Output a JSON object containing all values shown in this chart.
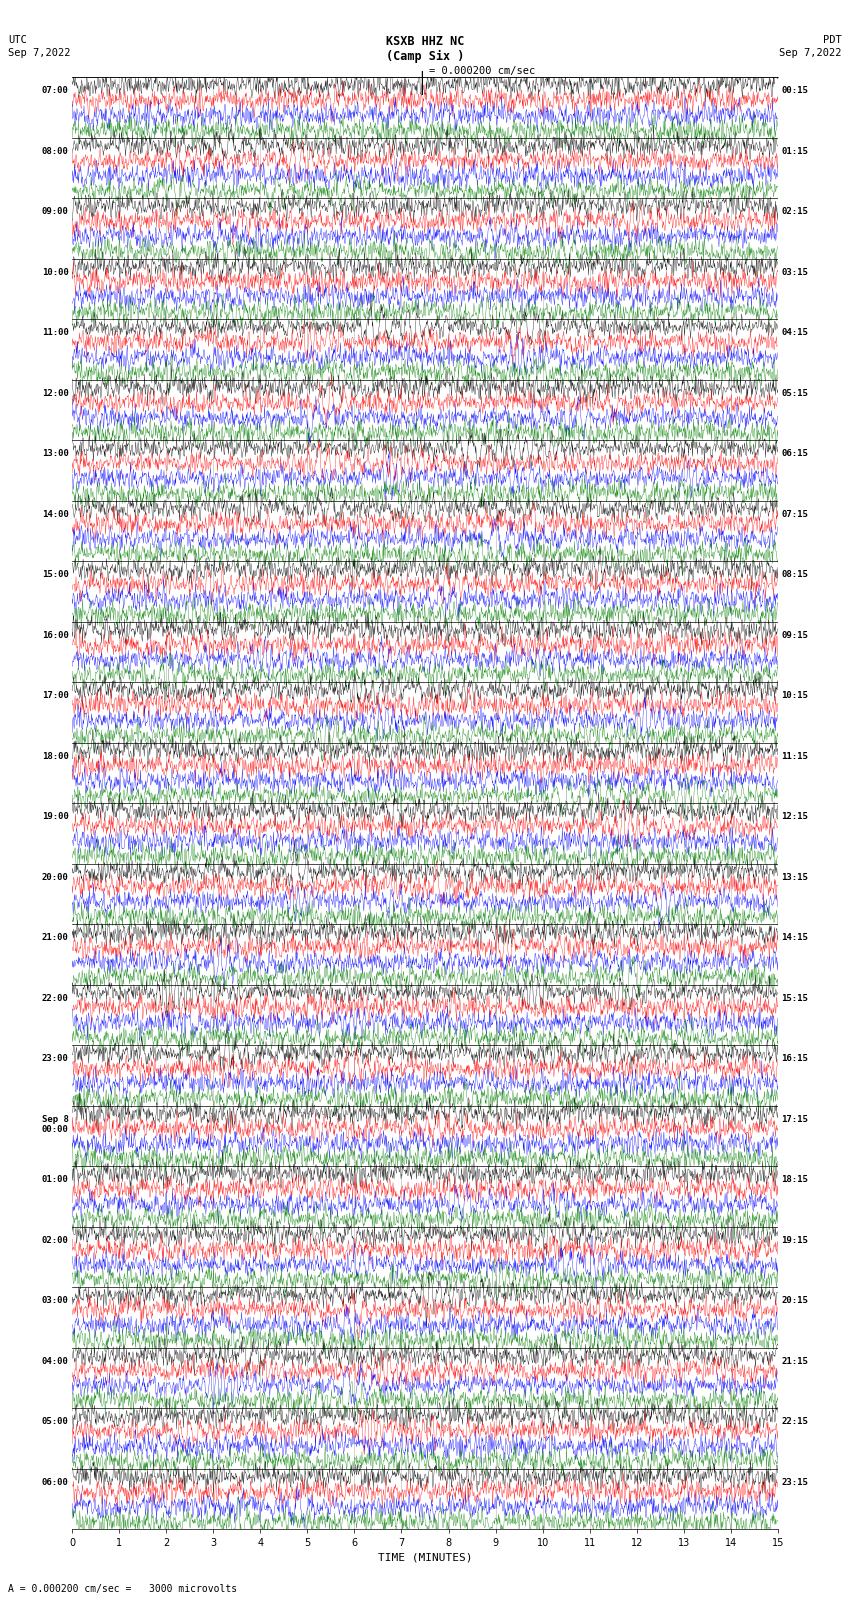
{
  "title_line1": "KSXB HHZ NC",
  "title_line2": "(Camp Six )",
  "scale_label": "= 0.000200 cm/sec",
  "bottom_label": "= 0.000200 cm/sec =   3000 microvolts",
  "bottom_label_prefix": "A",
  "left_header": "UTC",
  "left_date": "Sep 7,2022",
  "right_header": "PDT",
  "right_date": "Sep 7,2022",
  "xlabel": "TIME (MINUTES)",
  "utc_labels": [
    "07:00",
    "08:00",
    "09:00",
    "10:00",
    "11:00",
    "12:00",
    "13:00",
    "14:00",
    "15:00",
    "16:00",
    "17:00",
    "18:00",
    "19:00",
    "20:00",
    "21:00",
    "22:00",
    "23:00",
    "Sep 8\n00:00",
    "01:00",
    "02:00",
    "03:00",
    "04:00",
    "05:00",
    "06:00"
  ],
  "pdt_labels": [
    "00:15",
    "01:15",
    "02:15",
    "03:15",
    "04:15",
    "05:15",
    "06:15",
    "07:15",
    "08:15",
    "09:15",
    "10:15",
    "11:15",
    "12:15",
    "13:15",
    "14:15",
    "15:15",
    "16:15",
    "17:15",
    "18:15",
    "19:15",
    "20:15",
    "21:15",
    "22:15",
    "23:15"
  ],
  "n_rows": 24,
  "traces_per_row": 4,
  "colors": [
    "black",
    "red",
    "blue",
    "green"
  ],
  "x_ticks": [
    0,
    1,
    2,
    3,
    4,
    5,
    6,
    7,
    8,
    9,
    10,
    11,
    12,
    13,
    14,
    15
  ],
  "xlim": [
    0,
    15
  ],
  "fig_width": 8.5,
  "fig_height": 16.13,
  "dpi": 100,
  "background_color": "#ffffff",
  "seed": 42
}
